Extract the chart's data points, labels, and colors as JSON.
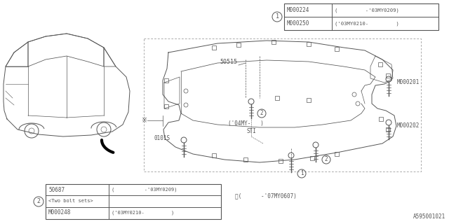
{
  "bg_color": "#ffffff",
  "line_color": "#555555",
  "dark_color": "#333333",
  "table1_rows": [
    [
      "M000224",
      "(         -'03MY0209)"
    ],
    [
      "M000250",
      "('03MY0210-         )"
    ]
  ],
  "table2_rows": [
    [
      "50687",
      "(          -'03MY0209)"
    ],
    [
      "<Two bolt sets>",
      ""
    ],
    [
      "M000248",
      "('03MY0210-         )"
    ]
  ],
  "label_50515": "50515",
  "label_0101S": "0101S",
  "label_04MY": "('04MY-   )",
  "label_STI": "STI",
  "label_M000201": "M000201",
  "label_M000202": "M000202",
  "label_note": "※(      -'07MY0607)",
  "label_asterisk": "※",
  "part_num": "A595001021",
  "fig_width": 6.4,
  "fig_height": 3.2,
  "dpi": 100
}
